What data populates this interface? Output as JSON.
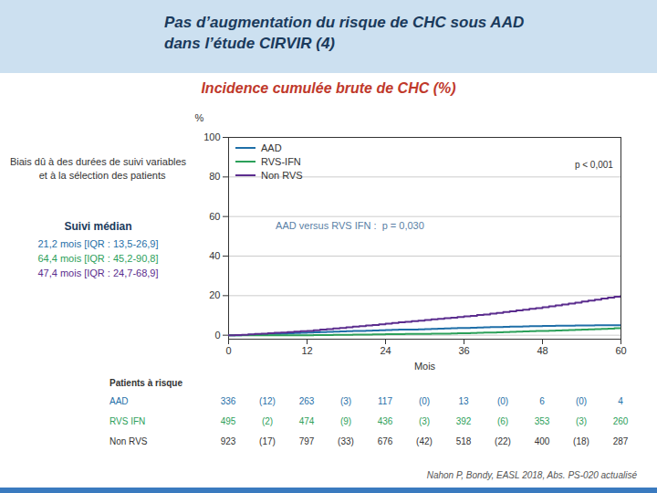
{
  "chart_data": {
    "type": "step",
    "title": "Pas d’augmentation du risque de CHC sous AAD\ndans l’étude CIRVIR (4)",
    "subtitle": "Incidence cumulée brute de CHC (%)",
    "x_label": "Mois",
    "y_label": "%",
    "x": [
      0,
      1,
      2,
      3,
      4,
      5,
      6,
      7,
      8,
      9,
      10,
      11,
      12,
      13,
      14,
      15,
      16,
      17,
      18,
      19,
      20,
      21,
      22,
      23,
      24,
      25,
      26,
      27,
      28,
      29,
      30,
      31,
      32,
      33,
      34,
      35,
      36,
      37,
      38,
      39,
      40,
      41,
      42,
      43,
      44,
      45,
      46,
      47,
      48,
      49,
      50,
      51,
      52,
      53,
      54,
      55,
      56,
      57,
      58,
      59,
      60
    ],
    "series": [
      {
        "name": "AAD",
        "color": "#1f6fa8",
        "values": [
          0,
          0,
          0.1,
          0.2,
          0.3,
          0.5,
          0.6,
          0.7,
          0.8,
          1.0,
          1.1,
          1.2,
          1.3,
          1.5,
          1.6,
          1.7,
          1.8,
          1.9,
          2.0,
          2.1,
          2.2,
          2.3,
          2.4,
          2.5,
          2.6,
          2.7,
          2.8,
          2.8,
          2.9,
          3.0,
          3.1,
          3.2,
          3.3,
          3.4,
          3.5,
          3.6,
          3.7,
          3.8,
          3.9,
          4.0,
          4.1,
          4.1,
          4.2,
          4.3,
          4.4,
          4.5,
          4.6,
          4.6,
          4.7,
          4.7,
          4.8,
          4.8,
          4.8,
          4.9,
          4.9,
          4.9,
          5.0,
          5.0,
          5.0,
          5.0,
          5.0
        ]
      },
      {
        "name": "RVS-IFN",
        "color": "#2ca05a",
        "values": [
          0,
          0,
          0,
          0,
          0,
          0,
          0,
          0,
          0,
          0,
          0,
          0,
          0,
          0.1,
          0.1,
          0.1,
          0.2,
          0.2,
          0.2,
          0.3,
          0.3,
          0.3,
          0.4,
          0.4,
          0.5,
          0.5,
          0.5,
          0.6,
          0.6,
          0.7,
          0.7,
          0.8,
          0.8,
          0.8,
          0.9,
          1.0,
          1.0,
          1.1,
          1.2,
          1.3,
          1.4,
          1.5,
          1.6,
          1.7,
          1.8,
          1.9,
          2.0,
          2.1,
          2.2,
          2.3,
          2.4,
          2.5,
          2.6,
          2.7,
          2.9,
          3.0,
          3.1,
          3.2,
          3.3,
          3.5,
          3.6
        ]
      },
      {
        "name": "Non RVS",
        "color": "#5b2d8e",
        "values": [
          0,
          0.1,
          0.2,
          0.4,
          0.6,
          0.8,
          1.0,
          1.2,
          1.4,
          1.6,
          1.8,
          2.0,
          2.2,
          2.5,
          2.8,
          3.1,
          3.4,
          3.7,
          4.0,
          4.3,
          4.6,
          4.9,
          5.2,
          5.5,
          5.8,
          6.2,
          6.5,
          6.8,
          7.1,
          7.4,
          7.7,
          8.0,
          8.3,
          8.6,
          8.9,
          9.2,
          9.5,
          9.8,
          10.2,
          10.5,
          10.9,
          11.3,
          11.7,
          12.1,
          12.5,
          12.9,
          13.3,
          13.7,
          14.1,
          14.6,
          15.1,
          15.5,
          16.0,
          16.5,
          17.0,
          17.5,
          18.0,
          18.5,
          19.0,
          19.5,
          20.0
        ]
      }
    ],
    "xlim": [
      0,
      60
    ],
    "ylim": [
      -2,
      100
    ],
    "xticks": [
      0,
      12,
      24,
      36,
      48,
      60
    ],
    "yticks": [
      0,
      20,
      40,
      60,
      80,
      100
    ],
    "grid": "y",
    "legend": "upper left",
    "annotations": [
      "p < 0,001",
      "AAD versus RVS IFN :  p = 0,030",
      "Biais dû à des durées de suivi variables\n   et à la sélection des patients"
    ],
    "median_follow_up": {
      "title": "Suivi médian",
      "values": [
        "21,2 mois [IQR : 13,5-26,9]",
        "64,4 mois [IQR : 45,2-90,8]",
        "47,4 mois [IQR : 24,7-68,9]"
      ]
    },
    "table": {
      "title": "Patients à risque",
      "rows": [
        {
          "name": "AAD",
          "color": "#1f6fa8",
          "cells": [
            "336",
            "(12)",
            "263",
            "(3)",
            "117",
            "(0)",
            "13",
            "(0)",
            "6",
            "(0)",
            "4"
          ]
        },
        {
          "name": "RVS IFN",
          "color": "#2ca05a",
          "cells": [
            "495",
            "(2)",
            "474",
            "(9)",
            "436",
            "(3)",
            "392",
            "(6)",
            "353",
            "(3)",
            "260"
          ]
        },
        {
          "name": "Non RVS",
          "color": "#333333",
          "cells": [
            "923",
            "(17)",
            "797",
            "(33)",
            "676",
            "(42)",
            "518",
            "(22)",
            "400",
            "(18)",
            "287"
          ]
        }
      ]
    },
    "caption": "Nahon P, Bondy, EASL 2018, Abs. PS-020 actualisé"
  }
}
